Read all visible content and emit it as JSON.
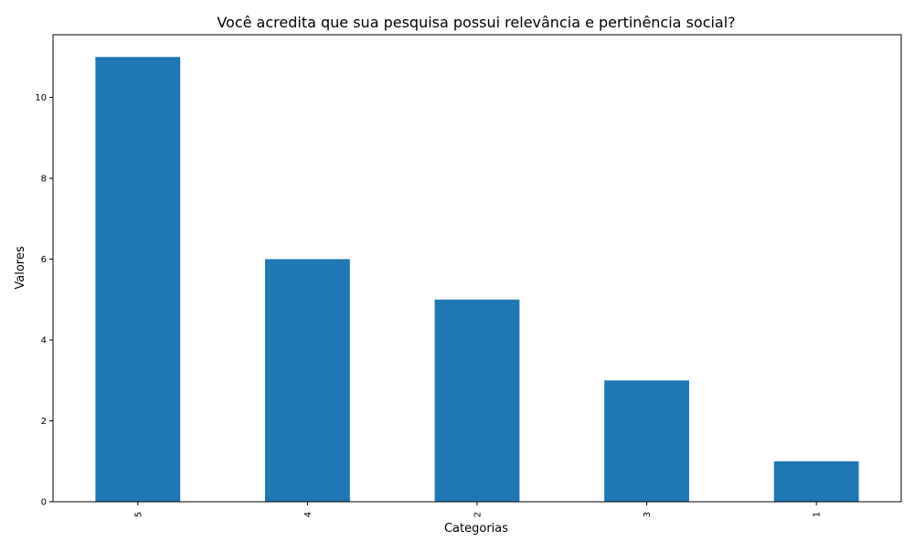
{
  "chart_data": {
    "type": "bar",
    "title": "Você acredita que sua pesquisa possui relevância e pertinência social?",
    "xlabel": "Categorias",
    "ylabel": "Valores",
    "categories": [
      "5",
      "4",
      "2",
      "3",
      "1"
    ],
    "values": [
      11,
      6,
      5,
      3,
      1
    ],
    "ylim": [
      0,
      11.55
    ],
    "yticks": [
      0,
      2,
      4,
      6,
      8,
      10
    ],
    "bar_color": "#1f77b4",
    "grid": false,
    "legend": "none"
  }
}
